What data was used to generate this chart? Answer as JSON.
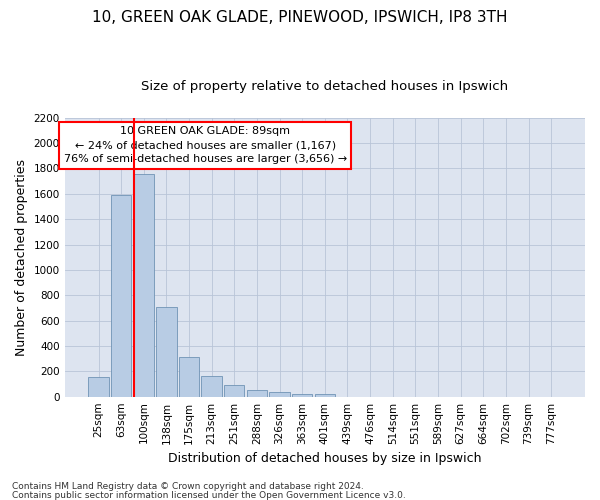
{
  "title": "10, GREEN OAK GLADE, PINEWOOD, IPSWICH, IP8 3TH",
  "subtitle": "Size of property relative to detached houses in Ipswich",
  "xlabel": "Distribution of detached houses by size in Ipswich",
  "ylabel": "Number of detached properties",
  "footnote1": "Contains HM Land Registry data © Crown copyright and database right 2024.",
  "footnote2": "Contains public sector information licensed under the Open Government Licence v3.0.",
  "annotation_line1": "10 GREEN OAK GLADE: 89sqm",
  "annotation_line2": "← 24% of detached houses are smaller (1,167)",
  "annotation_line3": "76% of semi-detached houses are larger (3,656) →",
  "categories": [
    "25sqm",
    "63sqm",
    "100sqm",
    "138sqm",
    "175sqm",
    "213sqm",
    "251sqm",
    "288sqm",
    "326sqm",
    "363sqm",
    "401sqm",
    "439sqm",
    "476sqm",
    "514sqm",
    "551sqm",
    "589sqm",
    "627sqm",
    "664sqm",
    "702sqm",
    "739sqm",
    "777sqm"
  ],
  "values": [
    155,
    1590,
    1755,
    710,
    315,
    160,
    90,
    55,
    35,
    20,
    20,
    0,
    0,
    0,
    0,
    0,
    0,
    0,
    0,
    0,
    0
  ],
  "bar_color": "#b8cce4",
  "bar_edge_color": "#7093b5",
  "vline_bar_index": 2,
  "ylim": [
    0,
    2200
  ],
  "yticks": [
    0,
    200,
    400,
    600,
    800,
    1000,
    1200,
    1400,
    1600,
    1800,
    2000,
    2200
  ],
  "bg_color": "#dde4f0",
  "title_fontsize": 11,
  "subtitle_fontsize": 9.5,
  "axis_label_fontsize": 9,
  "tick_fontsize": 7.5,
  "annotation_fontsize": 8,
  "footnote_fontsize": 6.5
}
